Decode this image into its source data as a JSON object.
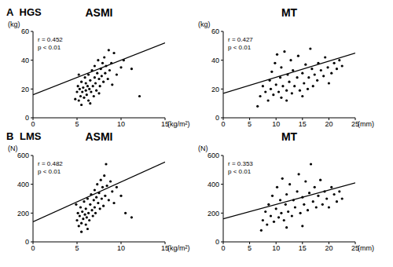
{
  "chart_data": [
    {
      "type": "scatter",
      "panel_label": "A",
      "group": "HGS",
      "title": "ASMI",
      "x_label": "(kg/m²)",
      "y_label": "(kg)",
      "annotations": [
        "r = 0.452",
        "p < 0.01"
      ],
      "color": "#000000",
      "marker": "circle",
      "xlim": [
        0,
        15
      ],
      "xticks": [
        0,
        5,
        10,
        15
      ],
      "ylim": [
        0,
        60
      ],
      "yticks": [
        0,
        20,
        40,
        60
      ],
      "fit_line": {
        "x": [
          0,
          15
        ],
        "y": [
          16,
          52
        ]
      },
      "x": [
        5.0,
        5.1,
        5.2,
        5.3,
        5.4,
        5.5,
        5.5,
        5.6,
        5.7,
        5.8,
        5.9,
        6.0,
        6.0,
        6.1,
        6.2,
        6.3,
        6.3,
        6.4,
        6.5,
        6.6,
        6.7,
        6.8,
        6.9,
        7.0,
        7.0,
        7.1,
        7.2,
        7.3,
        7.4,
        7.5,
        7.6,
        7.7,
        7.8,
        7.9,
        8.0,
        8.1,
        8.2,
        8.3,
        8.5,
        8.6,
        8.7,
        8.9,
        9.0,
        9.2,
        9.5,
        10.0,
        10.3,
        11.2,
        12.1,
        4.8,
        5.2,
        6.5,
        7.5
      ],
      "y": [
        18,
        22,
        12,
        20,
        15,
        25,
        9,
        18,
        21,
        14,
        28,
        19,
        24,
        16,
        22,
        30,
        12,
        20,
        26,
        18,
        33,
        22,
        15,
        28,
        36,
        24,
        19,
        31,
        40,
        27,
        22,
        34,
        29,
        38,
        25,
        42,
        31,
        36,
        27,
        47,
        33,
        38,
        23,
        45,
        30,
        35,
        40,
        34,
        15,
        13,
        30,
        10,
        17
      ]
    },
    {
      "type": "scatter",
      "title": "MT",
      "x_label": "(mm)",
      "y_label": "(kg)",
      "annotations": [
        "r = 0.427",
        "p < 0.01"
      ],
      "color": "#000000",
      "marker": "circle",
      "xlim": [
        0,
        25
      ],
      "xticks": [
        0,
        5,
        10,
        15,
        20,
        25
      ],
      "ylim": [
        0,
        60
      ],
      "yticks": [
        0,
        20,
        40,
        60
      ],
      "fit_line": {
        "x": [
          0,
          25
        ],
        "y": [
          17,
          45
        ]
      },
      "x": [
        7,
        7.5,
        8,
        8.5,
        8.8,
        9,
        9.2,
        9.5,
        9.8,
        10,
        10.2,
        10.5,
        10.8,
        11,
        11,
        11.3,
        11.6,
        12,
        12.2,
        12.5,
        12.8,
        13,
        13.2,
        13.5,
        14,
        14.2,
        14.5,
        15,
        15.3,
        15.6,
        16,
        16.2,
        16.5,
        16.8,
        17,
        17.3,
        17.8,
        18,
        18.5,
        19,
        19.3,
        19.8,
        20,
        20.5,
        21,
        21.5,
        22,
        22.5,
        6.5,
        12,
        15
      ],
      "y": [
        15,
        22,
        18,
        12,
        26,
        20,
        32,
        16,
        38,
        23,
        44,
        18,
        28,
        14,
        35,
        22,
        46,
        19,
        30,
        25,
        40,
        17,
        33,
        22,
        28,
        43,
        19,
        31,
        24,
        37,
        20,
        28,
        48,
        34,
        22,
        30,
        26,
        38,
        33,
        29,
        42,
        35,
        24,
        31,
        38,
        34,
        40,
        36,
        8,
        12,
        15
      ]
    },
    {
      "type": "scatter",
      "panel_label": "B",
      "group": "LMS",
      "title": "ASMI",
      "x_label": "(kg/m²)",
      "y_label": "(N)",
      "annotations": [
        "r = 0.482",
        "p < 0.01"
      ],
      "color": "#000000",
      "marker": "circle",
      "xlim": [
        0,
        15
      ],
      "xticks": [
        0,
        5,
        10,
        15
      ],
      "ylim": [
        0,
        600
      ],
      "yticks": [
        0,
        200,
        400,
        600
      ],
      "fit_line": {
        "x": [
          0,
          15
        ],
        "y": [
          140,
          555
        ]
      },
      "x": [
        5.0,
        5.1,
        5.2,
        5.3,
        5.4,
        5.5,
        5.6,
        5.7,
        5.8,
        5.9,
        6.0,
        6.0,
        6.1,
        6.2,
        6.3,
        6.4,
        6.5,
        6.6,
        6.7,
        6.8,
        6.9,
        7.0,
        7.0,
        7.1,
        7.2,
        7.3,
        7.4,
        7.5,
        7.6,
        7.7,
        7.8,
        7.9,
        8.0,
        8.1,
        8.2,
        8.3,
        8.4,
        8.6,
        8.8,
        9.0,
        9.2,
        9.5,
        10.0,
        10.5,
        11.2,
        5.5,
        6.2,
        4.9
      ],
      "y": [
        150,
        200,
        110,
        180,
        240,
        130,
        210,
        160,
        280,
        190,
        120,
        230,
        170,
        300,
        200,
        150,
        260,
        330,
        220,
        180,
        290,
        360,
        240,
        200,
        310,
        400,
        270,
        340,
        230,
        430,
        300,
        380,
        250,
        460,
        320,
        540,
        390,
        290,
        420,
        350,
        270,
        380,
        320,
        200,
        170,
        70,
        90,
        260
      ]
    },
    {
      "type": "scatter",
      "title": "MT",
      "x_label": "(mm)",
      "y_label": "(N)",
      "annotations": [
        "r = 0.353",
        "p < 0.01"
      ],
      "color": "#000000",
      "marker": "circle",
      "xlim": [
        0,
        25
      ],
      "xticks": [
        0,
        5,
        10,
        15,
        20,
        25
      ],
      "ylim": [
        0,
        600
      ],
      "yticks": [
        0,
        200,
        400,
        600
      ],
      "fit_line": {
        "x": [
          0,
          25
        ],
        "y": [
          160,
          410
        ]
      },
      "x": [
        7.5,
        8,
        8.3,
        8.6,
        9,
        9.3,
        9.6,
        10,
        10.2,
        10.5,
        10.8,
        11,
        11.2,
        11.5,
        11.8,
        12,
        12.3,
        12.6,
        13,
        13.3,
        13.6,
        14,
        14.3,
        14.6,
        15,
        15.3,
        15.6,
        16,
        16.3,
        16.6,
        17,
        17.3,
        17.6,
        18,
        18.4,
        18.8,
        19.2,
        19.6,
        20,
        20.5,
        21,
        21.5,
        22,
        22.5,
        7.2,
        12,
        15
      ],
      "y": [
        150,
        210,
        120,
        260,
        180,
        320,
        140,
        230,
        380,
        170,
        290,
        200,
        440,
        150,
        260,
        330,
        210,
        400,
        180,
        290,
        240,
        350,
        470,
        200,
        310,
        260,
        420,
        220,
        340,
        540,
        280,
        380,
        240,
        320,
        430,
        260,
        350,
        300,
        240,
        380,
        330,
        280,
        350,
        300,
        80,
        100,
        110
      ]
    }
  ]
}
